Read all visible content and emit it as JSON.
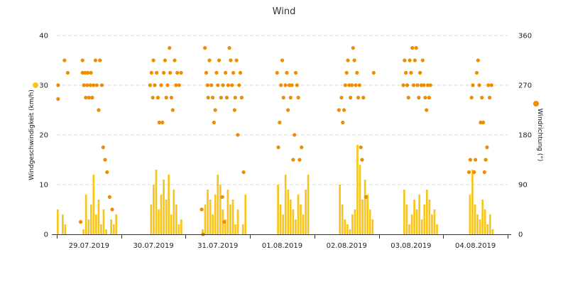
{
  "chart_data": {
    "type": "bar+scatter",
    "title": "Wind",
    "left_axis": {
      "label": "Windgeschwindigkeit (km/h)",
      "range": [
        0,
        40
      ],
      "ticks": [
        "0",
        "10",
        "20",
        "30",
        "40"
      ]
    },
    "right_axis": {
      "label": "Windrichtung (°)",
      "range": [
        0,
        360
      ],
      "ticks": [
        "0",
        "90",
        "180",
        "270",
        "360"
      ]
    },
    "x_axis": {
      "categories": [
        "29.07.2019",
        "30.07.2019",
        "31.07.2019",
        "01.08.2019",
        "02.08.2019",
        "03.08.2019",
        "04.08.2019"
      ],
      "range_days": [
        0,
        7
      ]
    },
    "grid": true,
    "series": [
      {
        "name": "Windgeschwindigkeit",
        "kind": "bar",
        "axis": "left",
        "color": "#f8c51c",
        "active_windows": [
          [
            0.0,
            0.15
          ],
          [
            0.4,
            0.92
          ],
          [
            1.45,
            1.92
          ],
          [
            2.25,
            2.92
          ],
          [
            3.42,
            3.92
          ],
          [
            4.38,
            4.92
          ],
          [
            5.38,
            5.92
          ],
          [
            6.4,
            6.92
          ]
        ],
        "values": [
          5,
          0,
          4,
          2,
          1,
          8,
          3,
          6,
          12,
          4,
          7,
          2,
          5,
          1,
          0,
          3,
          2,
          4,
          6,
          10,
          13,
          5,
          8,
          11,
          7,
          12,
          4,
          9,
          6,
          2,
          3,
          1,
          6,
          9,
          7,
          4,
          8,
          12,
          10,
          5,
          3,
          9,
          6,
          7,
          2,
          5,
          0,
          2,
          8,
          10,
          6,
          4,
          12,
          9,
          7,
          5,
          3,
          8,
          6,
          4,
          9,
          12,
          10,
          6,
          3,
          2,
          1,
          4,
          5,
          18,
          14,
          7,
          11,
          8,
          5,
          3,
          9,
          6,
          2,
          4,
          7,
          5,
          8,
          3,
          6,
          9,
          7,
          4,
          5,
          2,
          8,
          13,
          6,
          4,
          3,
          7,
          5,
          2,
          4,
          1
        ]
      },
      {
        "name": "Windrichtung",
        "kind": "scatter",
        "axis": "right",
        "color": "#f08c00",
        "points": [
          [
            0.02,
            270
          ],
          [
            0.02,
            245
          ],
          [
            0.12,
            315
          ],
          [
            0.17,
            292.5
          ],
          [
            0.37,
            22.5
          ],
          [
            0.4,
            315
          ],
          [
            0.4,
            292.5
          ],
          [
            0.42,
            270
          ],
          [
            0.44,
            292.5
          ],
          [
            0.45,
            247.5
          ],
          [
            0.47,
            270
          ],
          [
            0.48,
            292.5
          ],
          [
            0.5,
            247.5
          ],
          [
            0.52,
            270
          ],
          [
            0.53,
            292.5
          ],
          [
            0.55,
            247.5
          ],
          [
            0.57,
            270
          ],
          [
            0.6,
            315
          ],
          [
            0.62,
            270
          ],
          [
            0.65,
            225
          ],
          [
            0.67,
            315
          ],
          [
            0.7,
            270
          ],
          [
            0.72,
            157.5
          ],
          [
            0.75,
            135
          ],
          [
            0.78,
            112.5
          ],
          [
            0.82,
            67.5
          ],
          [
            0.86,
            45
          ],
          [
            1.45,
            270
          ],
          [
            1.47,
            292.5
          ],
          [
            1.49,
            247.5
          ],
          [
            1.5,
            315
          ],
          [
            1.52,
            270
          ],
          [
            1.55,
            292.5
          ],
          [
            1.57,
            247.5
          ],
          [
            1.59,
            202.5
          ],
          [
            1.62,
            270
          ],
          [
            1.64,
            202.5
          ],
          [
            1.66,
            292.5
          ],
          [
            1.68,
            315
          ],
          [
            1.7,
            247.5
          ],
          [
            1.72,
            270
          ],
          [
            1.75,
            337.5
          ],
          [
            1.76,
            292.5
          ],
          [
            1.78,
            247.5
          ],
          [
            1.8,
            225
          ],
          [
            1.83,
            315
          ],
          [
            1.85,
            270
          ],
          [
            1.87,
            292.5
          ],
          [
            1.9,
            270
          ],
          [
            1.93,
            292.5
          ],
          [
            2.25,
            45
          ],
          [
            2.27,
            0
          ],
          [
            2.3,
            337.5
          ],
          [
            2.32,
            292.5
          ],
          [
            2.34,
            270
          ],
          [
            2.35,
            247.5
          ],
          [
            2.37,
            315
          ],
          [
            2.4,
            270
          ],
          [
            2.42,
            247.5
          ],
          [
            2.44,
            202.5
          ],
          [
            2.46,
            225
          ],
          [
            2.48,
            292.5
          ],
          [
            2.5,
            270
          ],
          [
            2.52,
            315
          ],
          [
            2.55,
            247.5
          ],
          [
            2.57,
            67.5
          ],
          [
            2.58,
            270
          ],
          [
            2.6,
            22.5
          ],
          [
            2.62,
            292.5
          ],
          [
            2.64,
            247.5
          ],
          [
            2.66,
            270
          ],
          [
            2.68,
            337.5
          ],
          [
            2.7,
            315
          ],
          [
            2.72,
            270
          ],
          [
            2.74,
            292.5
          ],
          [
            2.76,
            225
          ],
          [
            2.77,
            247.5
          ],
          [
            2.79,
            315
          ],
          [
            2.81,
            180
          ],
          [
            2.83,
            270
          ],
          [
            2.85,
            292.5
          ],
          [
            2.87,
            247.5
          ],
          [
            2.9,
            112.5
          ],
          [
            3.42,
            292.5
          ],
          [
            3.44,
            157.5
          ],
          [
            3.46,
            202.5
          ],
          [
            3.48,
            270
          ],
          [
            3.5,
            315
          ],
          [
            3.52,
            247.5
          ],
          [
            3.55,
            270
          ],
          [
            3.57,
            292.5
          ],
          [
            3.59,
            225
          ],
          [
            3.61,
            270
          ],
          [
            3.63,
            247.5
          ],
          [
            3.65,
            270
          ],
          [
            3.67,
            135
          ],
          [
            3.69,
            180
          ],
          [
            3.71,
            292.5
          ],
          [
            3.73,
            270
          ],
          [
            3.75,
            247.5
          ],
          [
            3.77,
            135
          ],
          [
            3.8,
            157.5
          ],
          [
            4.38,
            225
          ],
          [
            4.42,
            247.5
          ],
          [
            4.44,
            202.5
          ],
          [
            4.46,
            225
          ],
          [
            4.48,
            270
          ],
          [
            4.5,
            292.5
          ],
          [
            4.52,
            315
          ],
          [
            4.54,
            270
          ],
          [
            4.56,
            247.5
          ],
          [
            4.58,
            270
          ],
          [
            4.6,
            337.5
          ],
          [
            4.62,
            315
          ],
          [
            4.64,
            270
          ],
          [
            4.66,
            292.5
          ],
          [
            4.68,
            247.5
          ],
          [
            4.7,
            270
          ],
          [
            4.72,
            157.5
          ],
          [
            4.74,
            135
          ],
          [
            4.76,
            247.5
          ],
          [
            4.8,
            67.5
          ],
          [
            4.92,
            292.5
          ],
          [
            5.38,
            270
          ],
          [
            5.4,
            315
          ],
          [
            5.42,
            292.5
          ],
          [
            5.44,
            270
          ],
          [
            5.46,
            247.5
          ],
          [
            5.48,
            315
          ],
          [
            5.5,
            292.5
          ],
          [
            5.52,
            337.5
          ],
          [
            5.54,
            270
          ],
          [
            5.56,
            315
          ],
          [
            5.58,
            337.5
          ],
          [
            5.6,
            270
          ],
          [
            5.62,
            247.5
          ],
          [
            5.64,
            292.5
          ],
          [
            5.66,
            270
          ],
          [
            5.68,
            315
          ],
          [
            5.7,
            270
          ],
          [
            5.72,
            247.5
          ],
          [
            5.74,
            225
          ],
          [
            5.76,
            270
          ],
          [
            5.78,
            247.5
          ],
          [
            5.8,
            270
          ],
          [
            6.4,
            112.5
          ],
          [
            6.42,
            135
          ],
          [
            6.44,
            247.5
          ],
          [
            6.46,
            270
          ],
          [
            6.48,
            112.5
          ],
          [
            6.5,
            135
          ],
          [
            6.52,
            292.5
          ],
          [
            6.54,
            315
          ],
          [
            6.56,
            270
          ],
          [
            6.58,
            202.5
          ],
          [
            6.6,
            247.5
          ],
          [
            6.62,
            202.5
          ],
          [
            6.64,
            112.5
          ],
          [
            6.66,
            135
          ],
          [
            6.68,
            157.5
          ],
          [
            6.7,
            270
          ],
          [
            6.72,
            247.5
          ],
          [
            6.75,
            270
          ]
        ]
      }
    ]
  }
}
